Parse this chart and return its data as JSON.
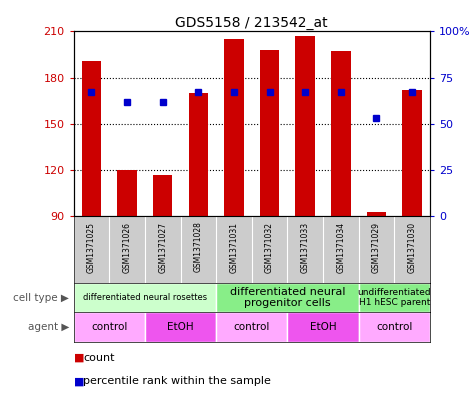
{
  "title": "GDS5158 / 213542_at",
  "samples": [
    "GSM1371025",
    "GSM1371026",
    "GSM1371027",
    "GSM1371028",
    "GSM1371031",
    "GSM1371032",
    "GSM1371033",
    "GSM1371034",
    "GSM1371029",
    "GSM1371030"
  ],
  "counts": [
    191,
    120,
    117,
    170,
    205,
    198,
    207,
    197,
    93,
    172
  ],
  "percentile_ranks": [
    67,
    62,
    62,
    67,
    67,
    67,
    67,
    67,
    53,
    67
  ],
  "ymin": 90,
  "ymax": 210,
  "yticks_left": [
    90,
    120,
    150,
    180,
    210
  ],
  "yticks_right": [
    0,
    25,
    50,
    75,
    100
  ],
  "bar_color": "#cc0000",
  "dot_color": "#0000cc",
  "cell_type_groups": [
    {
      "label": "differentiated neural rosettes",
      "start": 0,
      "end": 4,
      "color": "#ccffcc",
      "fontsize": 6
    },
    {
      "label": "differentiated neural\nprogenitor cells",
      "start": 4,
      "end": 8,
      "color": "#88ee88",
      "fontsize": 8
    },
    {
      "label": "undifferentiated\nH1 hESC parent",
      "start": 8,
      "end": 10,
      "color": "#88ee88",
      "fontsize": 6.5
    }
  ],
  "agent_groups": [
    {
      "label": "control",
      "start": 0,
      "end": 2,
      "color": "#ffaaff"
    },
    {
      "label": "EtOH",
      "start": 2,
      "end": 4,
      "color": "#ee55ee"
    },
    {
      "label": "control",
      "start": 4,
      "end": 6,
      "color": "#ffaaff"
    },
    {
      "label": "EtOH",
      "start": 6,
      "end": 8,
      "color": "#ee55ee"
    },
    {
      "label": "control",
      "start": 8,
      "end": 10,
      "color": "#ffaaff"
    }
  ],
  "legend_count_label": "count",
  "legend_pct_label": "percentile rank within the sample",
  "bg_color": "#ffffff",
  "sample_row_color": "#cccccc",
  "grid_color": "#000000"
}
